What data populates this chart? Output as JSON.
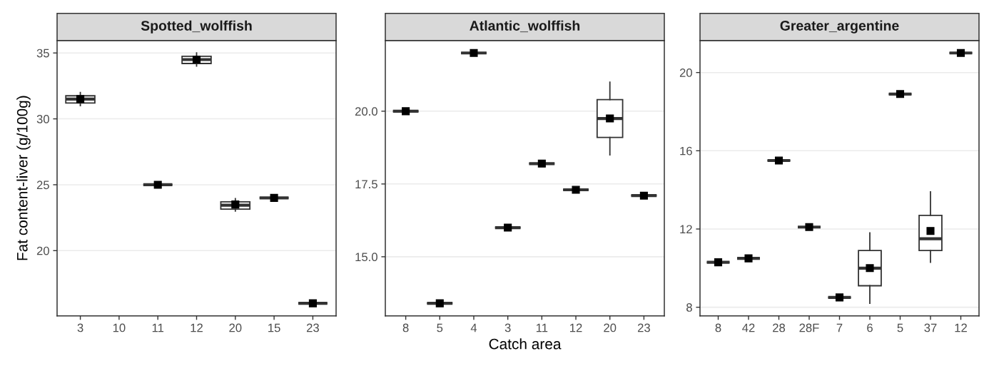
{
  "chart_data": [
    {
      "type": "box",
      "title": "Spotted_wolffish",
      "ylabel": "Fat content-liver (g/100g)",
      "categories": [
        "3",
        "10",
        "11",
        "12",
        "20",
        "15",
        "23"
      ],
      "ylim": [
        15.05,
        35.95
      ],
      "yticks": [
        20,
        25,
        30,
        35
      ],
      "grid": "y",
      "marker": "square",
      "boxes": [
        {
          "low": 31.0,
          "q1": 31.2,
          "median": 31.5,
          "q3": 31.75,
          "high": 32.0,
          "mean": 31.5
        },
        null,
        {
          "low": 25,
          "q1": 25,
          "median": 25,
          "q3": 25,
          "high": 25,
          "mean": 25
        },
        {
          "low": 34.0,
          "q1": 34.2,
          "median": 34.5,
          "q3": 34.75,
          "high": 35.0,
          "mean": 34.5
        },
        {
          "low": 23.0,
          "q1": 23.15,
          "median": 23.45,
          "q3": 23.7,
          "high": 23.95,
          "mean": 23.5
        },
        {
          "low": 24,
          "q1": 24,
          "median": 24,
          "q3": 24,
          "high": 24,
          "mean": 24
        },
        {
          "low": 16,
          "q1": 16,
          "median": 16,
          "q3": 16,
          "high": 16,
          "mean": 16
        }
      ]
    },
    {
      "type": "box",
      "title": "Atlantic_wolffish",
      "xlabel": "Catch area",
      "categories": [
        "8",
        "5",
        "4",
        "3",
        "11",
        "12",
        "20",
        "23"
      ],
      "ylim": [
        12.97,
        22.43
      ],
      "yticks": [
        {
          "value": 15,
          "label": "15.0"
        },
        {
          "value": 17.5,
          "label": "17.5"
        },
        {
          "value": 20,
          "label": "20.0"
        }
      ],
      "grid": "y",
      "marker": "square",
      "boxes": [
        {
          "low": 20.0,
          "q1": 20.0,
          "median": 20.0,
          "q3": 20.0,
          "high": 20.0,
          "mean": 20.0
        },
        {
          "low": 13.4,
          "q1": 13.4,
          "median": 13.4,
          "q3": 13.4,
          "high": 13.4,
          "mean": 13.4
        },
        {
          "low": 22.0,
          "q1": 22.0,
          "median": 22.0,
          "q3": 22.0,
          "high": 22.0,
          "mean": 22.0
        },
        {
          "low": 16.0,
          "q1": 16.0,
          "median": 16.0,
          "q3": 16.0,
          "high": 16.0,
          "mean": 16.0
        },
        {
          "low": 18.2,
          "q1": 18.2,
          "median": 18.2,
          "q3": 18.2,
          "high": 18.2,
          "mean": 18.2
        },
        {
          "low": 17.3,
          "q1": 17.3,
          "median": 17.3,
          "q3": 17.3,
          "high": 17.3,
          "mean": 17.3
        },
        {
          "low": 18.5,
          "q1": 19.1,
          "median": 19.75,
          "q3": 20.4,
          "high": 21.0,
          "mean": 19.75
        },
        {
          "low": 17.1,
          "q1": 17.1,
          "median": 17.1,
          "q3": 17.1,
          "high": 17.1,
          "mean": 17.1
        }
      ]
    },
    {
      "type": "box",
      "title": "Greater_argentine",
      "categories": [
        "8",
        "42",
        "28",
        "28F",
        "7",
        "6",
        "5",
        "37",
        "12"
      ],
      "ylim": [
        7.56,
        21.64
      ],
      "yticks": [
        8,
        12,
        16,
        20
      ],
      "grid": "y",
      "marker": "square",
      "boxes": [
        {
          "low": 10.3,
          "q1": 10.3,
          "median": 10.3,
          "q3": 10.3,
          "high": 10.3,
          "mean": 10.3
        },
        {
          "low": 10.5,
          "q1": 10.5,
          "median": 10.5,
          "q3": 10.5,
          "high": 10.5,
          "mean": 10.5
        },
        {
          "low": 15.5,
          "q1": 15.5,
          "median": 15.5,
          "q3": 15.5,
          "high": 15.5,
          "mean": 15.5
        },
        {
          "low": 12.1,
          "q1": 12.1,
          "median": 12.1,
          "q3": 12.1,
          "high": 12.1,
          "mean": 12.1
        },
        {
          "low": 8.5,
          "q1": 8.5,
          "median": 8.5,
          "q3": 8.5,
          "high": 8.5,
          "mean": 8.5
        },
        {
          "low": 8.2,
          "q1": 9.1,
          "median": 10.0,
          "q3": 10.9,
          "high": 11.8,
          "mean": 10.0
        },
        {
          "low": 18.9,
          "q1": 18.9,
          "median": 18.9,
          "q3": 18.9,
          "high": 18.9,
          "mean": 18.9
        },
        {
          "low": 10.3,
          "q1": 10.9,
          "median": 11.5,
          "q3": 12.7,
          "high": 13.9,
          "mean": 11.9
        },
        {
          "low": 21.0,
          "q1": 21.0,
          "median": 21.0,
          "q3": 21.0,
          "high": 21.0,
          "mean": 21.0
        }
      ]
    }
  ]
}
